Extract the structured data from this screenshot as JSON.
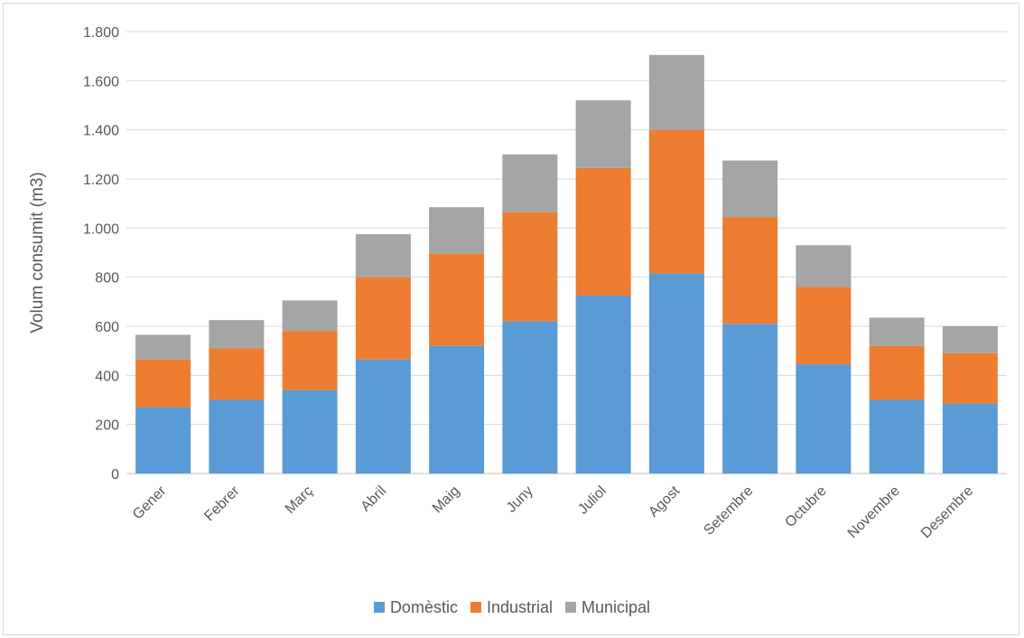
{
  "chart_data": {
    "type": "bar",
    "stacked": true,
    "ylabel": "Volum consumit (m3)",
    "ylim": [
      0,
      1800
    ],
    "yticks": [
      0,
      200,
      400,
      600,
      800,
      1000,
      1200,
      1400,
      1600,
      1800
    ],
    "ytick_labels": [
      "0",
      "200",
      "400",
      "600",
      "800",
      "1.000",
      "1.200",
      "1.400",
      "1.600",
      "1.800"
    ],
    "grid": true,
    "legend_position": "bottom",
    "categories": [
      "Gener",
      "Febrer",
      "Març",
      "Abril",
      "Maig",
      "Juny",
      "Juliol",
      "Agost",
      "Setembre",
      "Octubre",
      "Novembre",
      "Desembre"
    ],
    "series": [
      {
        "name": "Domèstic",
        "color": "#5b9bd5",
        "values": [
          270,
          300,
          340,
          465,
          520,
          620,
          725,
          815,
          610,
          445,
          300,
          285
        ]
      },
      {
        "name": "Industrial",
        "color": "#ed7d31",
        "values": [
          195,
          210,
          240,
          335,
          375,
          445,
          520,
          585,
          435,
          315,
          220,
          205
        ]
      },
      {
        "name": "Municipal",
        "color": "#a5a5a5",
        "values": [
          100,
          115,
          125,
          175,
          190,
          235,
          275,
          305,
          230,
          170,
          115,
          110
        ]
      }
    ]
  }
}
